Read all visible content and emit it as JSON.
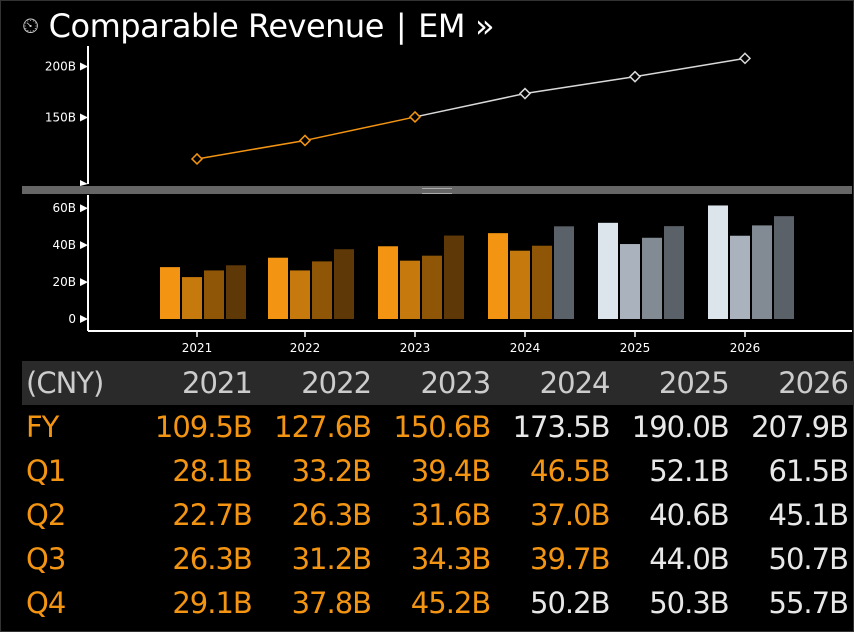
{
  "title": {
    "icon": "chart-icon",
    "name": "Comparable Revenue",
    "separator": "|",
    "ticker": "EM",
    "more": "»"
  },
  "chart_data": [
    {
      "type": "line",
      "x": [
        "2021",
        "2022",
        "2023",
        "2024",
        "2025",
        "2026"
      ],
      "series": [
        {
          "values": [
            109.5,
            127.6,
            150.6,
            173.5,
            190.0,
            207.9
          ]
        }
      ],
      "actual_years": 3,
      "yticks": [
        "200B",
        "150B"
      ],
      "ytick_values": [
        200,
        150
      ],
      "ylim": [
        85,
        220
      ],
      "colors": {
        "actual": "#f39512",
        "estimate": "#d9d9d9"
      }
    },
    {
      "type": "bar",
      "categories": [
        "2021",
        "2022",
        "2023",
        "2024",
        "2025",
        "2026"
      ],
      "series": [
        {
          "values": [
            28.1,
            33.2,
            39.4,
            46.5,
            52.1,
            61.5
          ]
        },
        {
          "values": [
            22.7,
            26.3,
            31.6,
            37.0,
            40.6,
            45.1
          ]
        },
        {
          "values": [
            26.3,
            31.2,
            34.3,
            39.7,
            44.0,
            50.7
          ]
        },
        {
          "values": [
            29.1,
            37.8,
            45.2,
            50.2,
            50.3,
            55.7
          ]
        }
      ],
      "yticks": [
        "60B",
        "40B",
        "20B",
        "0"
      ],
      "ytick_values": [
        60,
        40,
        20,
        0
      ],
      "ylim": [
        0,
        65
      ],
      "colors": {
        "actual": [
          "#f39512",
          "#c67a0e",
          "#8f5608",
          "#5e3807"
        ],
        "estimate": [
          "#dce4ec",
          "#aab3bd",
          "#828b94",
          "#5b6168"
        ]
      },
      "actual_flags": [
        [
          true,
          true,
          true,
          true
        ],
        [
          true,
          true,
          true,
          true
        ],
        [
          true,
          true,
          true,
          true
        ],
        [
          true,
          true,
          true,
          false
        ],
        [
          false,
          false,
          false,
          false
        ],
        [
          false,
          false,
          false,
          false
        ]
      ]
    }
  ],
  "table": {
    "header_label": "(CNY)",
    "years": [
      "2021",
      "2022",
      "2023",
      "2024",
      "2025",
      "2026"
    ],
    "rows": [
      {
        "label": "FY",
        "values": [
          "109.5B",
          "127.6B",
          "150.6B",
          "173.5B",
          "190.0B",
          "207.9B"
        ],
        "actual": [
          true,
          true,
          true,
          false,
          false,
          false
        ]
      },
      {
        "label": "Q1",
        "values": [
          "28.1B",
          "33.2B",
          "39.4B",
          "46.5B",
          "52.1B",
          "61.5B"
        ],
        "actual": [
          true,
          true,
          true,
          true,
          false,
          false
        ]
      },
      {
        "label": "Q2",
        "values": [
          "22.7B",
          "26.3B",
          "31.6B",
          "37.0B",
          "40.6B",
          "45.1B"
        ],
        "actual": [
          true,
          true,
          true,
          true,
          false,
          false
        ]
      },
      {
        "label": "Q3",
        "values": [
          "26.3B",
          "31.2B",
          "34.3B",
          "39.7B",
          "44.0B",
          "50.7B"
        ],
        "actual": [
          true,
          true,
          true,
          true,
          false,
          false
        ]
      },
      {
        "label": "Q4",
        "values": [
          "29.1B",
          "37.8B",
          "45.2B",
          "50.2B",
          "50.3B",
          "55.7B"
        ],
        "actual": [
          true,
          true,
          true,
          false,
          false,
          false
        ]
      }
    ]
  }
}
